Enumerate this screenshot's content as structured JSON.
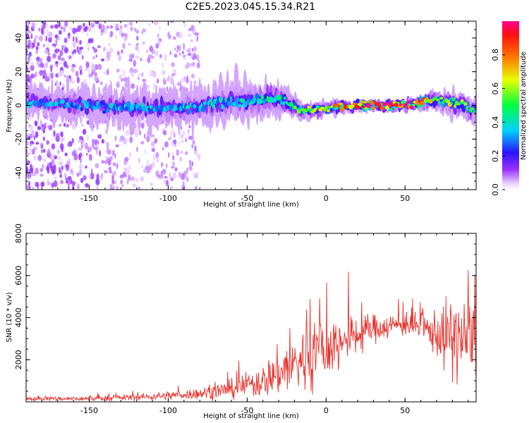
{
  "title": "C2E5.2023.045.15.34.R21",
  "chart_data": [
    {
      "type": "heatmap",
      "xlabel": "Height of straight line (km)",
      "ylabel": "Frequency (Hz)",
      "xlim": [
        -190,
        95
      ],
      "ylim": [
        -50,
        50
      ],
      "xticks": [
        -150,
        -100,
        -50,
        0,
        50
      ],
      "yticks": [
        -40,
        -20,
        0,
        20,
        40
      ],
      "colorbar": {
        "label": "Normalized spectral amplitude",
        "range": [
          0,
          1
        ],
        "ticks": [
          0.0,
          0.2,
          0.4,
          0.6,
          0.8
        ],
        "tick_labels": [
          "0.0",
          "0.2",
          "0.4",
          "0.6",
          "0.8"
        ]
      },
      "ridge": [
        {
          "x": -190,
          "center_hz": 2,
          "spread_hz": 5,
          "peak_amp": 0.3
        },
        {
          "x": -150,
          "center_hz": 0,
          "spread_hz": 6,
          "peak_amp": 0.3
        },
        {
          "x": -100,
          "center_hz": -2,
          "spread_hz": 7,
          "peak_amp": 0.3
        },
        {
          "x": -50,
          "center_hz": 3,
          "spread_hz": 7,
          "peak_amp": 0.35
        },
        {
          "x": -30,
          "center_hz": 4,
          "spread_hz": 6,
          "peak_amp": 0.4
        },
        {
          "x": -15,
          "center_hz": -3,
          "spread_hz": 3,
          "peak_amp": 0.45
        },
        {
          "x": 0,
          "center_hz": -2,
          "spread_hz": 2,
          "peak_amp": 0.55
        },
        {
          "x": 20,
          "center_hz": 0,
          "spread_hz": 1.5,
          "peak_amp": 0.75
        },
        {
          "x": 40,
          "center_hz": 0,
          "spread_hz": 1.5,
          "peak_amp": 0.85
        },
        {
          "x": 55,
          "center_hz": 0.5,
          "spread_hz": 1.5,
          "peak_amp": 0.9
        },
        {
          "x": 65,
          "center_hz": 3,
          "spread_hz": 3,
          "peak_amp": 0.55
        },
        {
          "x": 80,
          "center_hz": 2,
          "spread_hz": 4,
          "peak_amp": 0.5
        },
        {
          "x": 95,
          "center_hz": -3,
          "spread_hz": 4,
          "peak_amp": 0.4
        }
      ],
      "background_scatter_extent_x": [
        -190,
        -80
      ]
    },
    {
      "type": "line",
      "xlabel": "Height of straight line (km)",
      "ylabel": "SNR (10 * v/v)",
      "xlim": [
        -190,
        95
      ],
      "ylim": [
        0,
        8000
      ],
      "xticks": [
        -150,
        -100,
        -50,
        0,
        50
      ],
      "yticks": [
        2000,
        4000,
        6000,
        8000
      ],
      "series": [
        {
          "color": "#e8302b",
          "envelope": [
            {
              "x": -190,
              "mean": 150,
              "noise": 80
            },
            {
              "x": -150,
              "mean": 150,
              "noise": 100
            },
            {
              "x": -110,
              "mean": 250,
              "noise": 150
            },
            {
              "x": -80,
              "mean": 400,
              "noise": 250
            },
            {
              "x": -60,
              "mean": 600,
              "noise": 400
            },
            {
              "x": -40,
              "mean": 1000,
              "noise": 700
            },
            {
              "x": -25,
              "mean": 1600,
              "noise": 1200
            },
            {
              "x": -10,
              "mean": 2200,
              "noise": 1600
            },
            {
              "x": 0,
              "mean": 2500,
              "noise": 1400
            },
            {
              "x": 15,
              "mean": 3000,
              "noise": 1000
            },
            {
              "x": 30,
              "mean": 3500,
              "noise": 600
            },
            {
              "x": 50,
              "mean": 3700,
              "noise": 500
            },
            {
              "x": 65,
              "mean": 3400,
              "noise": 700
            },
            {
              "x": 80,
              "mean": 3000,
              "noise": 1800
            },
            {
              "x": 95,
              "mean": 3000,
              "noise": 1600
            }
          ]
        }
      ]
    }
  ]
}
